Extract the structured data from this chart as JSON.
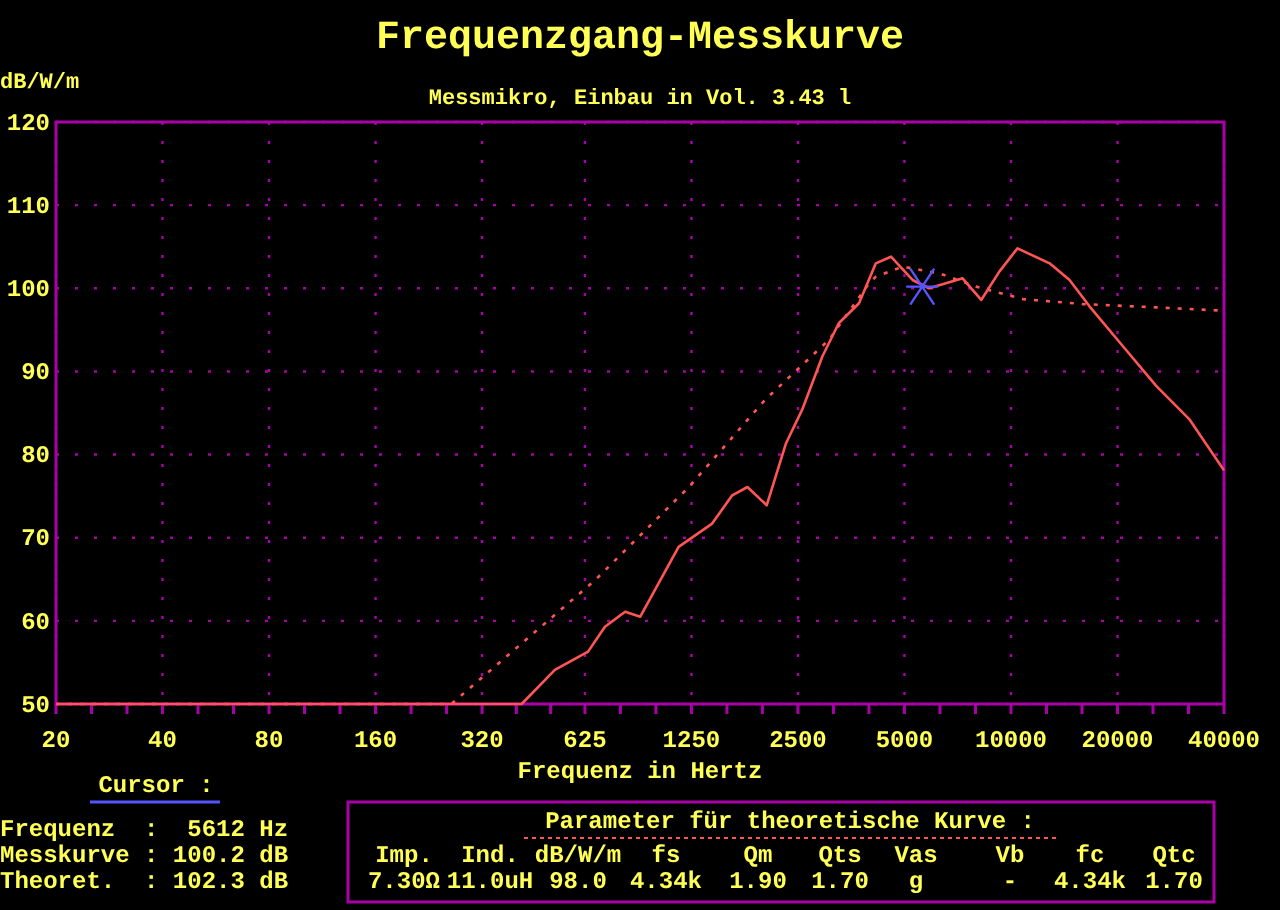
{
  "chart_data": {
    "type": "line",
    "title": "Frequenzgang-Messkurve",
    "subtitle": "Messmikro, Einbau in Vol. 3.43 l",
    "xlabel": "Frequenz in Hertz",
    "ylabel": "dB/W/m",
    "log": "x",
    "grid": true,
    "xlim": [
      20,
      40000
    ],
    "ylim": [
      50,
      120
    ],
    "xticks": [
      20,
      40,
      80,
      160,
      320,
      625,
      1250,
      2500,
      5000,
      10000,
      20000,
      40000
    ],
    "yticks": [
      50,
      60,
      70,
      80,
      90,
      100,
      110,
      120
    ],
    "series": [
      {
        "color": "#ff5555",
        "line_style": "solid",
        "x": [
          20,
          414,
          514,
          638,
          712,
          812,
          896,
          1150,
          1430,
          1630,
          1800,
          2040,
          2310,
          2570,
          2930,
          3260,
          3720,
          4150,
          4580,
          5270,
          5870,
          7300,
          8240,
          9270,
          10430,
          12860,
          14640,
          16690,
          20750,
          25800,
          32000,
          40000
        ],
        "values": [
          50,
          50,
          54.1,
          56.3,
          59.3,
          61.1,
          60.5,
          68.9,
          71.7,
          75.1,
          76.1,
          73.9,
          81.3,
          85.4,
          91.8,
          95.8,
          98.2,
          103,
          103.8,
          101,
          100,
          101.2,
          98.6,
          102,
          104.8,
          103,
          101,
          97.8,
          93,
          88.2,
          84.2,
          78.1
        ]
      },
      {
        "color": "#ff5555",
        "line_style": "dotted",
        "x": [
          20,
          262,
          668,
          1230,
          2020,
          3060,
          3970,
          4150,
          4940,
          6270,
          7970,
          10800,
          15980,
          25800,
          40000
        ],
        "values": [
          50,
          50,
          64.9,
          76.1,
          86.6,
          93.8,
          100.6,
          101.4,
          102.6,
          101.8,
          100.2,
          98.7,
          98.1,
          97.7,
          97.3
        ]
      },
      {
        "type": "scatter",
        "marker": "cross",
        "color": "#5555ff",
        "x": [
          5612
        ],
        "values": [
          100.2
        ]
      }
    ],
    "annotations": [
      "Cursor :",
      "Frequenz  :  5612 Hz",
      "Messkurve : 100.2 dB",
      "Theoret.  : 102.3 dB",
      "Parameter für theoretische Kurve :",
      "Imp.",
      "Ind.",
      "dB/W/m",
      "fs",
      "Qm",
      "Qts",
      "Vas",
      "Vb",
      "fc",
      "Qtc",
      "7.30Ω",
      "11.0uH",
      "98.0",
      "4.34k",
      "1.90",
      "1.70",
      "g",
      "-",
      "4.34k",
      "1.70"
    ]
  }
}
